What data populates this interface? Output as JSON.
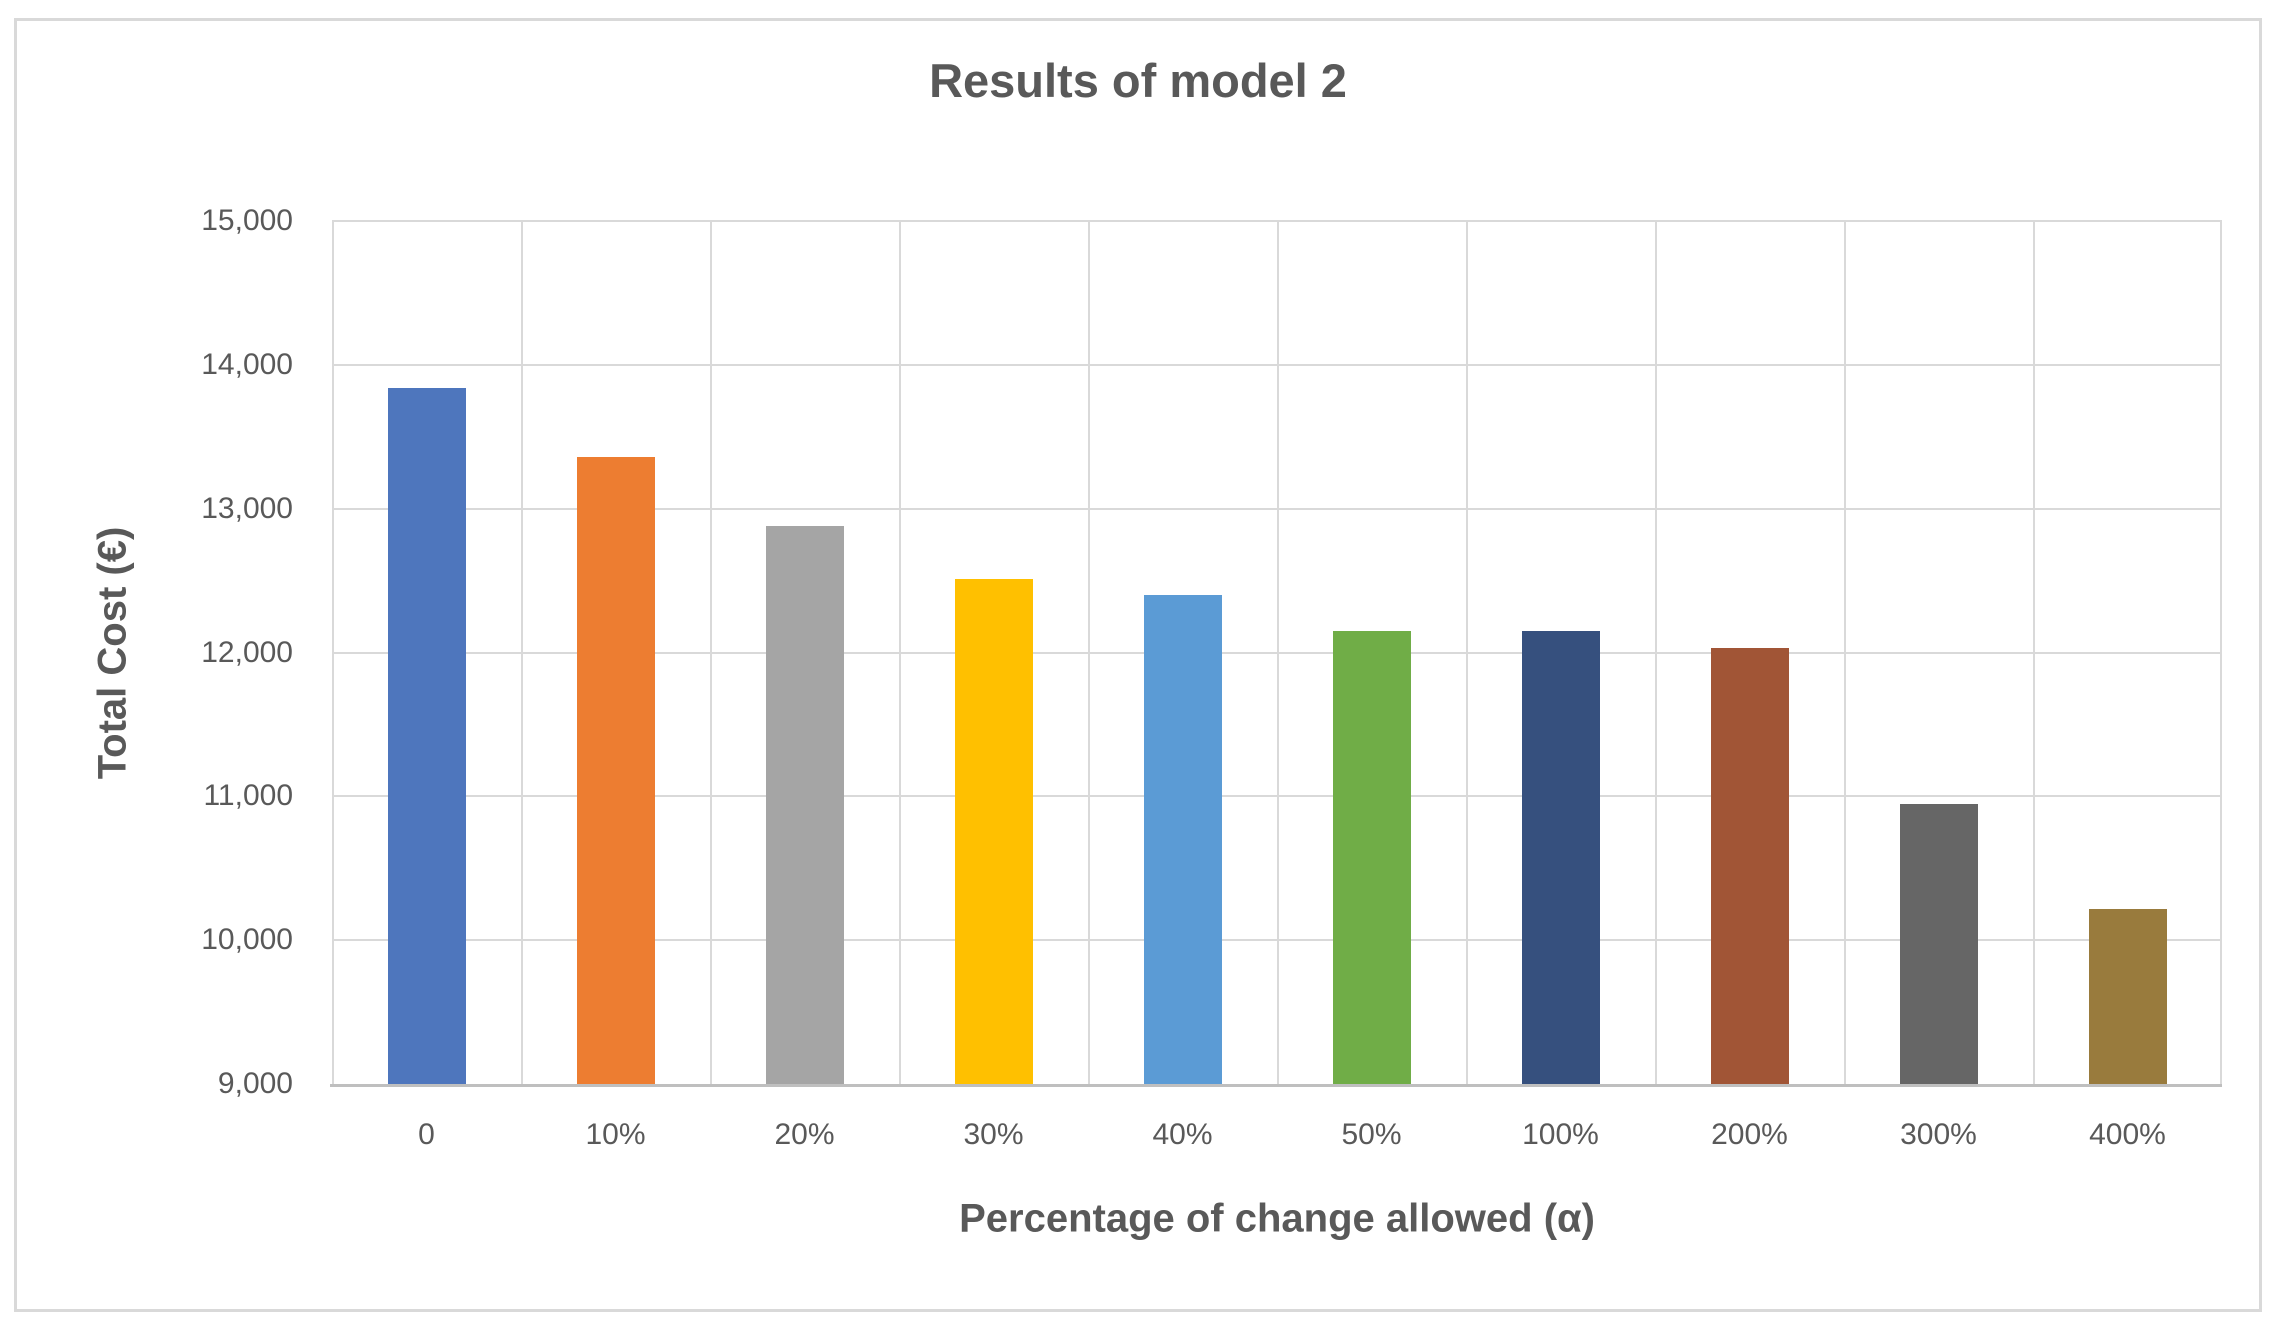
{
  "chart_data": {
    "type": "bar",
    "title": "Results of model 2",
    "xlabel": "Percentage of change allowed (α)",
    "ylabel": "Total Cost (€)",
    "categories": [
      "0",
      "10%",
      "20%",
      "30%",
      "40%",
      "50%",
      "100%",
      "200%",
      "300%",
      "400%"
    ],
    "values": [
      13840,
      13360,
      12880,
      12510,
      12400,
      12150,
      12150,
      12030,
      10950,
      10220
    ],
    "ylim": [
      9000,
      15000
    ],
    "ytick_interval": 1000,
    "ytick_labels": [
      "9,000",
      "10,000",
      "11,000",
      "12,000",
      "13,000",
      "14,000",
      "15,000"
    ],
    "grid": true,
    "legend": false,
    "bar_colors": [
      "#4E76BD",
      "#ED7D31",
      "#A5A5A5",
      "#FFC000",
      "#5B9BD5",
      "#70AD47",
      "#36507E",
      "#A15536",
      "#666666",
      "#997B3D"
    ],
    "text_color": "#595959",
    "gridline_color": "#D9D9D9",
    "axis_line_color": "#BFBFBF",
    "chart_border_color": "#D9D9D9",
    "background": "#FFFFFF"
  }
}
